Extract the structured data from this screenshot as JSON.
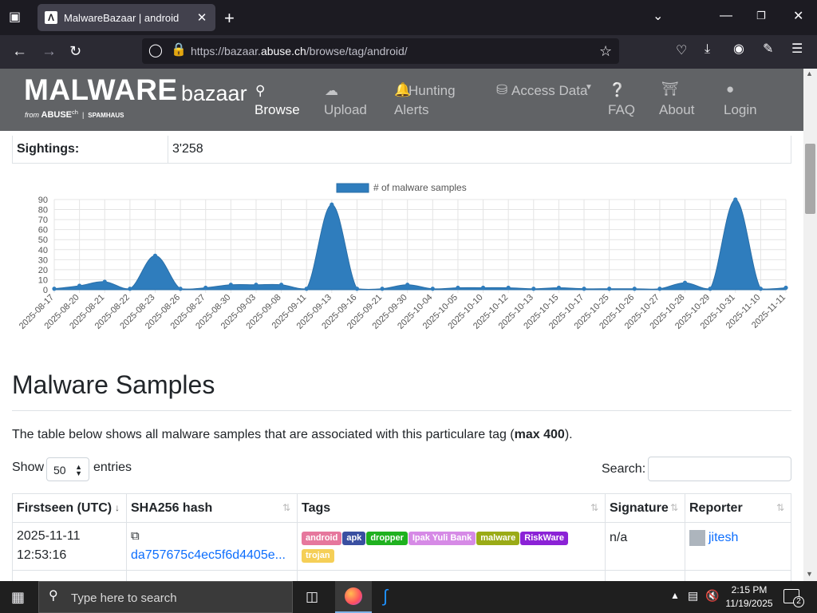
{
  "browser": {
    "tab_title": "MalwareBazaar | android",
    "url_prefix": "https://bazaar.",
    "url_domain": "abuse.ch",
    "url_path": "/browse/tag/android/"
  },
  "header": {
    "logo_main": "MALWARE",
    "logo_sub": "bazaar",
    "logo_from": "from",
    "logo_abuse": "ABUSE",
    "logo_abuse_sup": "ch",
    "logo_spamhaus": "SPAMHAUS",
    "nav": [
      {
        "label": "Browse",
        "icon": "search-icon",
        "active": true
      },
      {
        "label": "Upload",
        "icon": "cloud-upload-icon",
        "active": false
      },
      {
        "label": "Hunting Alerts",
        "icon": "bell-icon",
        "active": false
      },
      {
        "label": "Access Data",
        "icon": "database-icon",
        "active": false
      },
      {
        "label": "FAQ",
        "icon": "question-icon",
        "active": false
      },
      {
        "label": "About",
        "icon": "building-icon",
        "active": false
      },
      {
        "label": "Login",
        "icon": "user-icon",
        "active": false
      }
    ],
    "hunting_l1": "Hunting",
    "hunting_l2": "Alerts"
  },
  "sightings": {
    "label": "Sightings:",
    "value": "3'258"
  },
  "chart_data": {
    "type": "area",
    "legend": "# of malware samples",
    "legend_position": "top-center",
    "color": "#2f7dbd",
    "ylim": [
      0,
      90
    ],
    "yticks": [
      0,
      10,
      20,
      30,
      40,
      50,
      60,
      70,
      80,
      90
    ],
    "grid": true,
    "x": [
      "2025-08-17",
      "2025-08-20",
      "2025-08-21",
      "2025-08-22",
      "2025-08-23",
      "2025-08-26",
      "2025-08-27",
      "2025-08-30",
      "2025-09-03",
      "2025-09-08",
      "2025-09-11",
      "2025-09-13",
      "2025-09-16",
      "2025-09-21",
      "2025-09-30",
      "2025-10-04",
      "2025-10-05",
      "2025-10-10",
      "2025-10-12",
      "2025-10-13",
      "2025-10-15",
      "2025-10-17",
      "2025-10-25",
      "2025-10-26",
      "2025-10-27",
      "2025-10-28",
      "2025-10-29",
      "2025-10-31",
      "2025-11-10",
      "2025-11-11"
    ],
    "values": [
      1,
      4,
      8,
      1,
      34,
      1,
      2,
      5,
      5,
      5,
      1,
      85,
      1,
      1,
      5,
      1,
      2,
      2,
      2,
      1,
      2,
      1,
      1,
      1,
      1,
      7,
      1,
      90,
      1,
      2
    ]
  },
  "section": {
    "title": "Malware Samples",
    "desc_before": "The table below shows all malware samples that are associated with this particulare tag (",
    "desc_bold": "max 400",
    "desc_after": ")."
  },
  "table_controls": {
    "show": "Show",
    "page_size": "50",
    "entries": "entries",
    "search_label": "Search:"
  },
  "table": {
    "columns": [
      "Firstseen (UTC)",
      "SHA256 hash",
      "Tags",
      "Signature",
      "Reporter"
    ],
    "rows": [
      {
        "date": "2025-11-11",
        "time": "12:53:16",
        "hash": "da757675c4ec5f6d4405e...",
        "tags": [
          {
            "label": "android",
            "color": "#e6779d"
          },
          {
            "label": "apk",
            "color": "#3a4fa1"
          },
          {
            "label": "dropper",
            "color": "#1fb11f"
          },
          {
            "label": "Ipak Yuli Bank",
            "color": "#d68ae6"
          },
          {
            "label": "malware",
            "color": "#9aab16"
          },
          {
            "label": "RiskWare",
            "color": "#8b22d6"
          },
          {
            "label": "trojan",
            "color": "#f5cf57"
          }
        ],
        "signature": "n/a",
        "reporter": "jitesh"
      }
    ]
  },
  "taskbar": {
    "search_placeholder": "Type here to search",
    "time": "2:15 PM",
    "date": "11/19/2025",
    "notifications": "2"
  }
}
